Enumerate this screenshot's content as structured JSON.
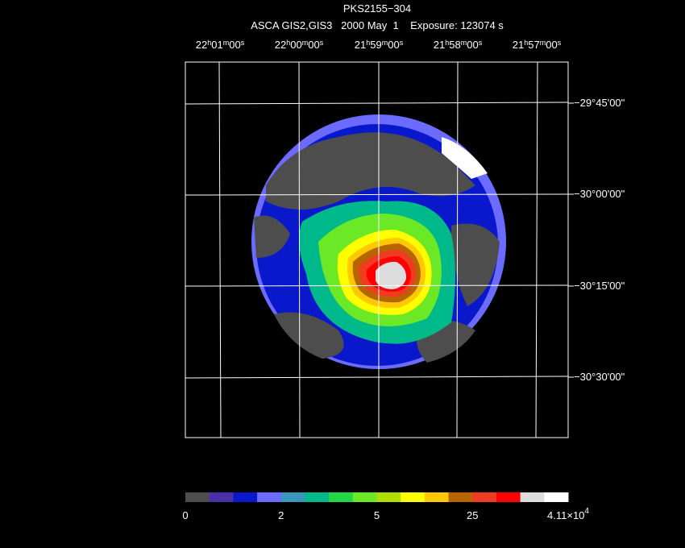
{
  "title": "PKS2155−304",
  "subtitle": "ASCA GIS2,GIS3   2000 May  1    Exposure: 123074 s",
  "ra_units": [
    "h",
    "m",
    "s"
  ],
  "ra_labels": [
    {
      "hours": "22",
      "minutes": "01",
      "seconds": "00"
    },
    {
      "hours": "22",
      "minutes": "00",
      "seconds": "00"
    },
    {
      "hours": "21",
      "minutes": "59",
      "seconds": "00"
    },
    {
      "hours": "21",
      "minutes": "58",
      "seconds": "00"
    },
    {
      "hours": "21",
      "minutes": "57",
      "seconds": "00"
    }
  ],
  "dec_labels": [
    "−29°45'00\"",
    "−30°00'00\"",
    "−30°15'00\"",
    "−30°30'00\""
  ],
  "colorbar": {
    "colors": [
      "#4d4d4d",
      "#4a2fa8",
      "#0a18cc",
      "#6b6bff",
      "#3a96bc",
      "#00b98a",
      "#22d845",
      "#6be826",
      "#b0dd00",
      "#ffff00",
      "#ffc800",
      "#b86400",
      "#ee3b22",
      "#ff0000",
      "#dcdcdc",
      "#ffffff"
    ],
    "labels": [
      "0",
      "2",
      "5",
      "25",
      {
        "mantissa": "4.11×10",
        "exponent": "4"
      }
    ]
  }
}
